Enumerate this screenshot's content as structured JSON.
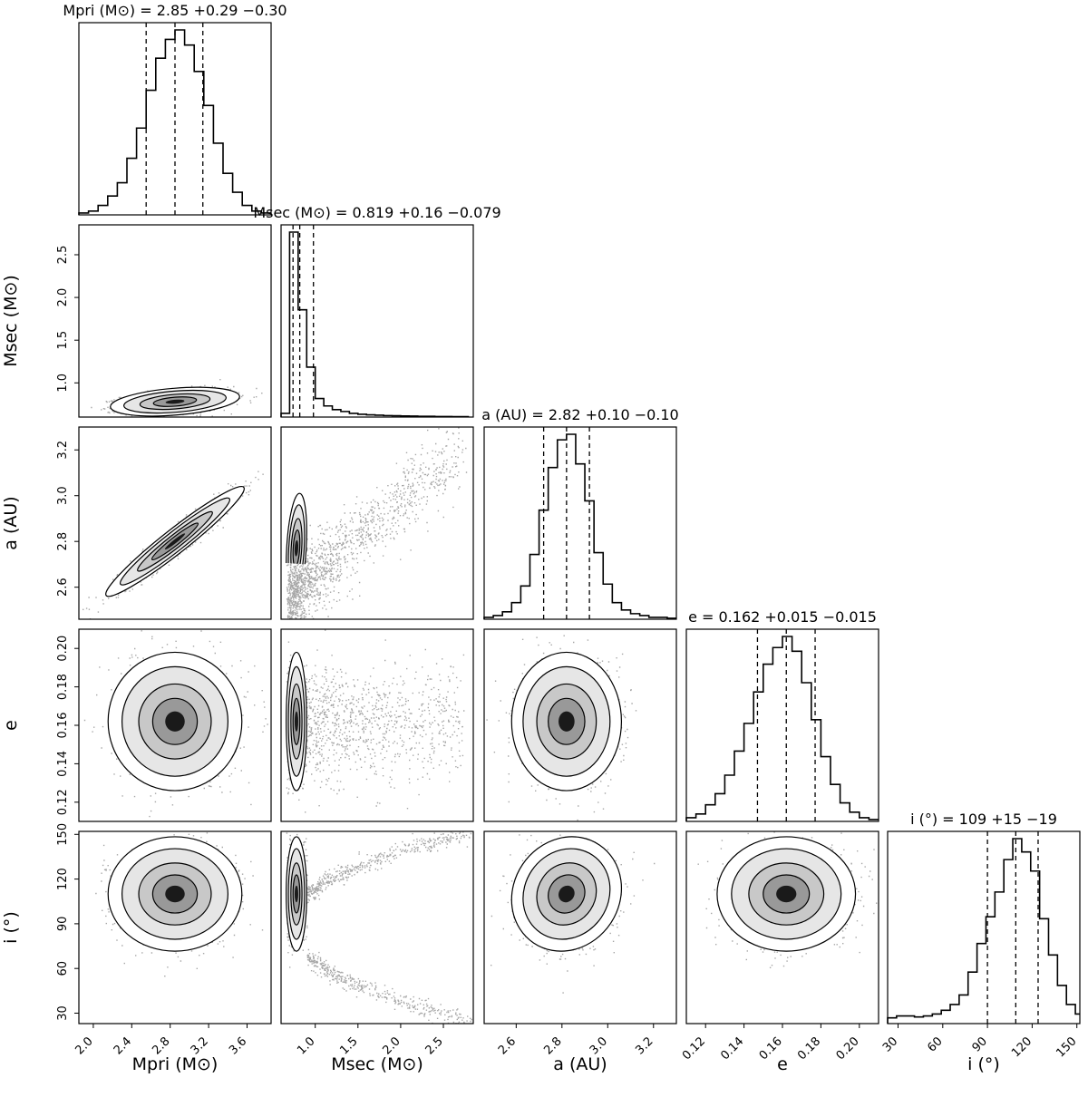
{
  "chart_data": {
    "type": "corner",
    "parameters": [
      {
        "key": "mpri",
        "label": "Mpri (M⊙)",
        "range": [
          1.85,
          3.85
        ],
        "ticks": [
          "2.0",
          "2.4",
          "2.8",
          "3.2",
          "3.6"
        ],
        "title": "Mpri (M⊙) = 2.85 +0.29 −0.30",
        "median": 2.85,
        "plus": 0.29,
        "minus": 0.3,
        "hist_x": [
          1.85,
          1.95,
          2.05,
          2.15,
          2.25,
          2.35,
          2.45,
          2.55,
          2.65,
          2.75,
          2.85,
          2.95,
          3.05,
          3.15,
          3.25,
          3.35,
          3.45,
          3.55,
          3.65,
          3.75
        ],
        "hist": [
          0.01,
          0.02,
          0.05,
          0.1,
          0.17,
          0.3,
          0.46,
          0.66,
          0.83,
          0.93,
          0.98,
          0.9,
          0.76,
          0.58,
          0.38,
          0.22,
          0.12,
          0.05,
          0.02,
          0.01
        ]
      },
      {
        "key": "msec",
        "label": "Msec (M⊙)",
        "range": [
          0.6,
          2.85
        ],
        "ticks": [
          "1.0",
          "1.5",
          "2.0",
          "2.5"
        ],
        "title": "Msec (M⊙) = 0.819 +0.16 −0.079",
        "median": 0.819,
        "plus": 0.16,
        "minus": 0.079,
        "hist_x": [
          0.6,
          0.7,
          0.8,
          0.9,
          1.0,
          1.1,
          1.2,
          1.3,
          1.4,
          1.5,
          1.6,
          1.7,
          1.8,
          1.9,
          2.0,
          2.1,
          2.2,
          2.3,
          2.4,
          2.5,
          2.6,
          2.7
        ],
        "hist": [
          0.02,
          1.0,
          0.58,
          0.27,
          0.1,
          0.06,
          0.04,
          0.03,
          0.02,
          0.015,
          0.012,
          0.01,
          0.008,
          0.007,
          0.006,
          0.005,
          0.004,
          0.004,
          0.003,
          0.003,
          0.002,
          0.002
        ]
      },
      {
        "key": "a",
        "label": "a (AU)",
        "range": [
          2.46,
          3.3
        ],
        "ticks": [
          "2.6",
          "2.8",
          "3.0",
          "3.2"
        ],
        "title": "a (AU) = 2.82 +0.10 −0.10",
        "median": 2.82,
        "plus": 0.1,
        "minus": 0.1,
        "hist_x": [
          2.46,
          2.5,
          2.54,
          2.58,
          2.62,
          2.66,
          2.7,
          2.74,
          2.78,
          2.82,
          2.86,
          2.9,
          2.94,
          2.98,
          3.02,
          3.06,
          3.1,
          3.14,
          3.18,
          3.22,
          3.26
        ],
        "hist": [
          0.01,
          0.02,
          0.04,
          0.09,
          0.18,
          0.35,
          0.59,
          0.82,
          0.97,
          1.0,
          0.84,
          0.64,
          0.36,
          0.19,
          0.09,
          0.05,
          0.03,
          0.02,
          0.01,
          0.01,
          0.005
        ]
      },
      {
        "key": "e",
        "label": "e",
        "range": [
          0.11,
          0.21
        ],
        "ticks": [
          "0.12",
          "0.14",
          "0.16",
          "0.18",
          "0.20"
        ],
        "title": "e = 0.162 +0.015 −0.015",
        "median": 0.162,
        "plus": 0.015,
        "minus": 0.015,
        "hist_x": [
          0.11,
          0.115,
          0.12,
          0.125,
          0.13,
          0.135,
          0.14,
          0.145,
          0.15,
          0.155,
          0.16,
          0.165,
          0.17,
          0.175,
          0.18,
          0.185,
          0.19,
          0.195,
          0.2,
          0.205
        ],
        "hist": [
          0.02,
          0.04,
          0.09,
          0.15,
          0.25,
          0.38,
          0.53,
          0.7,
          0.85,
          0.94,
          1.0,
          0.92,
          0.75,
          0.55,
          0.35,
          0.2,
          0.1,
          0.05,
          0.02,
          0.01
        ]
      },
      {
        "key": "i",
        "label": "i (°)",
        "range": [
          23,
          152
        ],
        "ticks": [
          "30",
          "60",
          "90",
          "120",
          "150"
        ],
        "title": "i (°) = 109 +15 −19",
        "median": 109,
        "plus": 15,
        "minus": 19,
        "hist_x": [
          23,
          29,
          35,
          41,
          47,
          53,
          59,
          65,
          71,
          77,
          83,
          89,
          95,
          101,
          107,
          113,
          119,
          125,
          131,
          137,
          143,
          149
        ],
        "hist": [
          0.03,
          0.04,
          0.04,
          0.035,
          0.04,
          0.05,
          0.07,
          0.1,
          0.15,
          0.27,
          0.42,
          0.56,
          0.69,
          0.86,
          0.97,
          0.9,
          0.8,
          0.55,
          0.36,
          0.2,
          0.1,
          0.05
        ]
      }
    ],
    "pairs": [
      {
        "row": 1,
        "col": 0,
        "center": [
          2.85,
          0.78
        ],
        "spread": [
          0.28,
          0.07
        ],
        "rho": 0.35,
        "shape": "gauss"
      },
      {
        "row": 2,
        "col": 0,
        "center": [
          2.85,
          2.8
        ],
        "spread": [
          0.3,
          0.1
        ],
        "rho": 0.96,
        "shape": "gauss"
      },
      {
        "row": 2,
        "col": 1,
        "center": [
          0.78,
          2.77
        ],
        "spread": [
          0.05,
          0.1
        ],
        "rho": 0.3,
        "shape": "msec_a"
      },
      {
        "row": 3,
        "col": 0,
        "center": [
          2.85,
          0.162
        ],
        "spread": [
          0.29,
          0.015
        ],
        "rho": 0.0,
        "shape": "gauss"
      },
      {
        "row": 3,
        "col": 1,
        "center": [
          0.78,
          0.162
        ],
        "spread": [
          0.05,
          0.015
        ],
        "rho": 0.0,
        "shape": "msec_e"
      },
      {
        "row": 3,
        "col": 2,
        "center": [
          2.82,
          0.162
        ],
        "spread": [
          0.1,
          0.015
        ],
        "rho": 0.0,
        "shape": "gauss"
      },
      {
        "row": 4,
        "col": 0,
        "center": [
          2.85,
          110
        ],
        "spread": [
          0.29,
          16
        ],
        "rho": 0.0,
        "shape": "gauss"
      },
      {
        "row": 4,
        "col": 1,
        "center": [
          0.78,
          110
        ],
        "spread": [
          0.05,
          16
        ],
        "rho": 0.0,
        "shape": "msec_i"
      },
      {
        "row": 4,
        "col": 2,
        "center": [
          2.82,
          110
        ],
        "spread": [
          0.1,
          16
        ],
        "rho": 0.1,
        "shape": "gauss"
      },
      {
        "row": 4,
        "col": 3,
        "center": [
          0.162,
          110
        ],
        "spread": [
          0.015,
          16
        ],
        "rho": 0.0,
        "shape": "gauss"
      }
    ]
  }
}
